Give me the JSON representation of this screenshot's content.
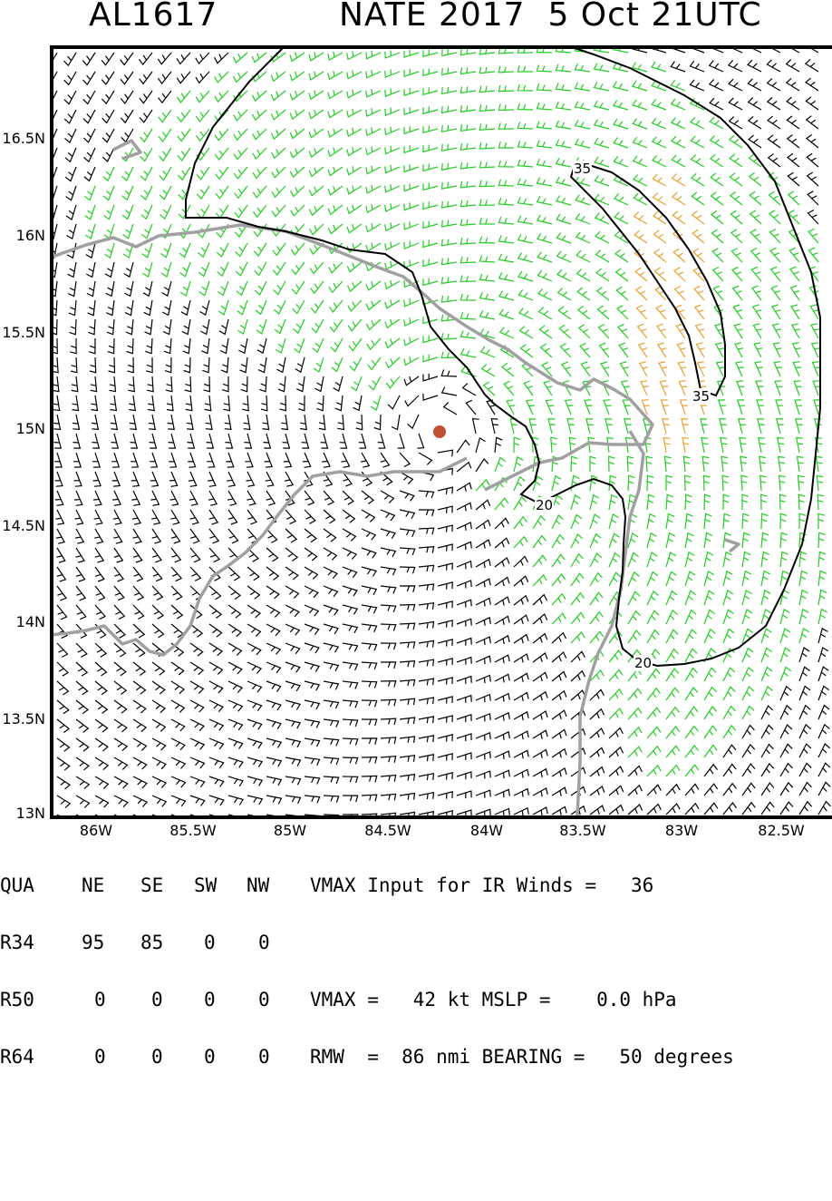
{
  "header": {
    "storm_id": "AL1617",
    "storm_name_time": "NATE 2017  5 Oct 21UTC"
  },
  "map": {
    "y_tick_labels": [
      "16.5N",
      "16N",
      "15.5N",
      "15N",
      "14.5N",
      "14N",
      "13.5N",
      "13N"
    ],
    "x_tick_labels": [
      "86W",
      "85.5W",
      "85W",
      "84.5W",
      "84W",
      "83.5W",
      "83W",
      "82.5W"
    ],
    "contour_labels": [
      "35",
      "35",
      "20",
      "20"
    ],
    "colors": {
      "barb_weak": "#000000",
      "barb_tropical_storm": "#22cc22",
      "barb_strong": "#e8a030",
      "coastline": "#a0a0a0",
      "storm_center": "#c05030"
    },
    "storm_center": {
      "lat": 15.0,
      "lon": -84.2
    },
    "contour_levels_kt": [
      20,
      35
    ]
  },
  "info": {
    "header_row": {
      "c1": "QUA",
      "c2": "NE",
      "c3": "SE",
      "c4": "SW",
      "c5": "NW",
      "rest": "VMAX Input for IR Winds =   36"
    },
    "r34": {
      "c1": "R34",
      "c2": "95",
      "c3": "85",
      "c4": "0",
      "c5": "0",
      "rest": ""
    },
    "r50": {
      "c1": "R50",
      "c2": "0",
      "c3": "0",
      "c4": "0",
      "c5": "0",
      "rest": "VMAX =   42 kt MSLP =    0.0 hPa"
    },
    "r64": {
      "c1": "R64",
      "c2": "0",
      "c3": "0",
      "c4": "0",
      "c5": "0",
      "rest": "RMW  =  86 nmi BEARING =   50 degrees"
    }
  }
}
